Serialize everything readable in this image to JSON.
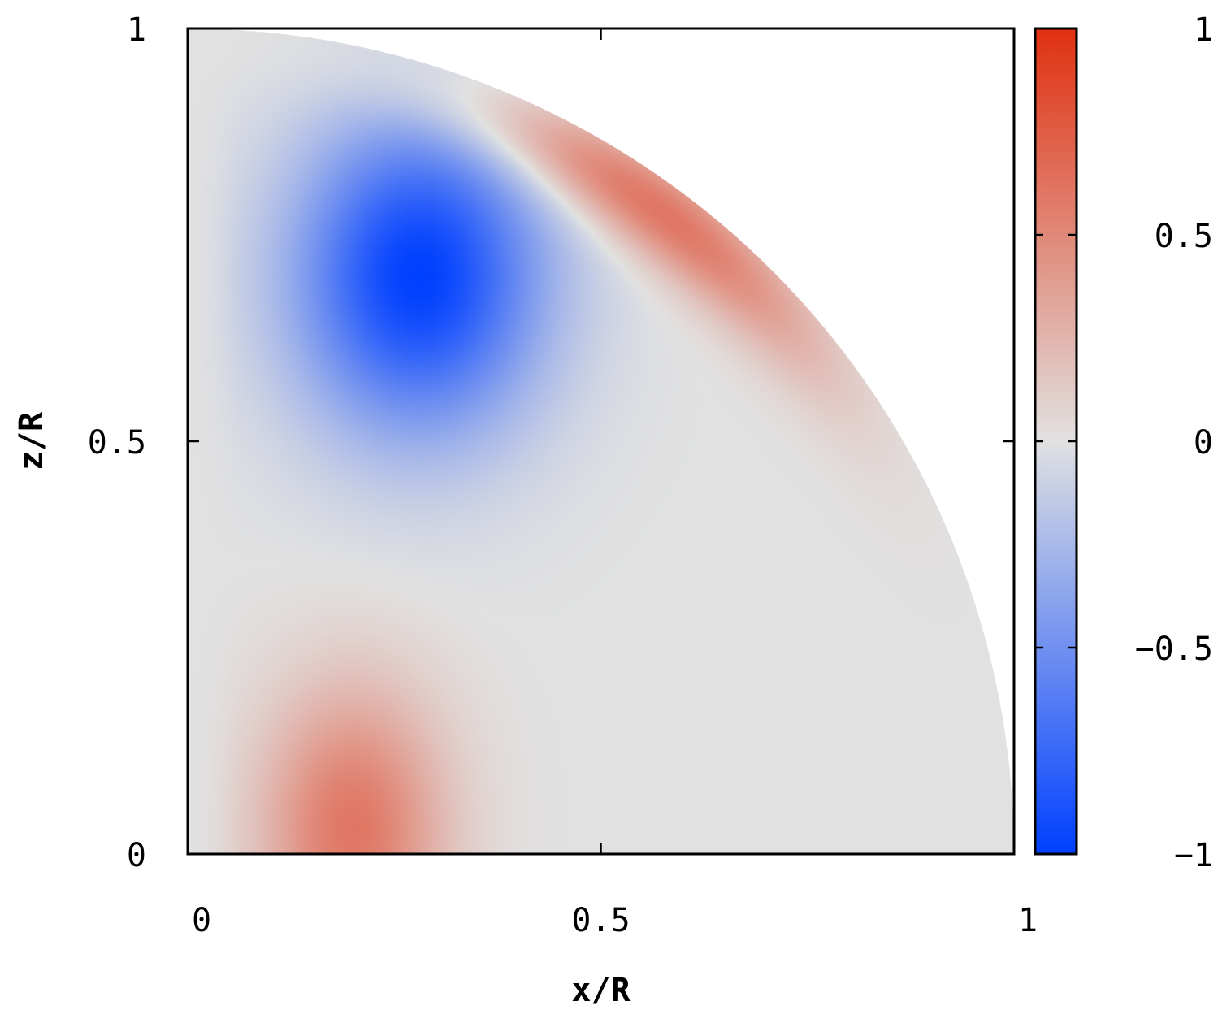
{
  "chart_data": {
    "type": "heatmap",
    "domain": "quarter-disk",
    "xlabel": "x/R",
    "ylabel": "z/R",
    "xlim": [
      0,
      1
    ],
    "ylim": [
      0,
      1
    ],
    "x_ticks": [
      {
        "value": 0,
        "label": "0"
      },
      {
        "value": 0.5,
        "label": "0.5"
      },
      {
        "value": 1,
        "label": "1"
      }
    ],
    "y_ticks": [
      {
        "value": 0,
        "label": "0"
      },
      {
        "value": 0.5,
        "label": "0.5"
      },
      {
        "value": 1,
        "label": "1"
      }
    ],
    "colorbar": {
      "range": [
        -1,
        1
      ],
      "ticks": [
        {
          "value": 1,
          "label": "1"
        },
        {
          "value": 0.5,
          "label": "0.5"
        },
        {
          "value": 0,
          "label": "0"
        },
        {
          "value": -0.5,
          "label": "−0.5"
        },
        {
          "value": -1,
          "label": "−1"
        }
      ],
      "colors": {
        "min": "#0040ff",
        "mid": "#e1e1e1",
        "max": "#e03010"
      }
    },
    "features": [
      {
        "sign": "negative",
        "peak": -1.0,
        "center": [
          0.28,
          0.7
        ]
      },
      {
        "sign": "positive",
        "peak": 0.6,
        "center": [
          0.2,
          0.05
        ]
      },
      {
        "sign": "positive",
        "peak": 0.6,
        "center": [
          0.55,
          0.84
        ]
      }
    ],
    "grid": false,
    "legend": "none"
  }
}
